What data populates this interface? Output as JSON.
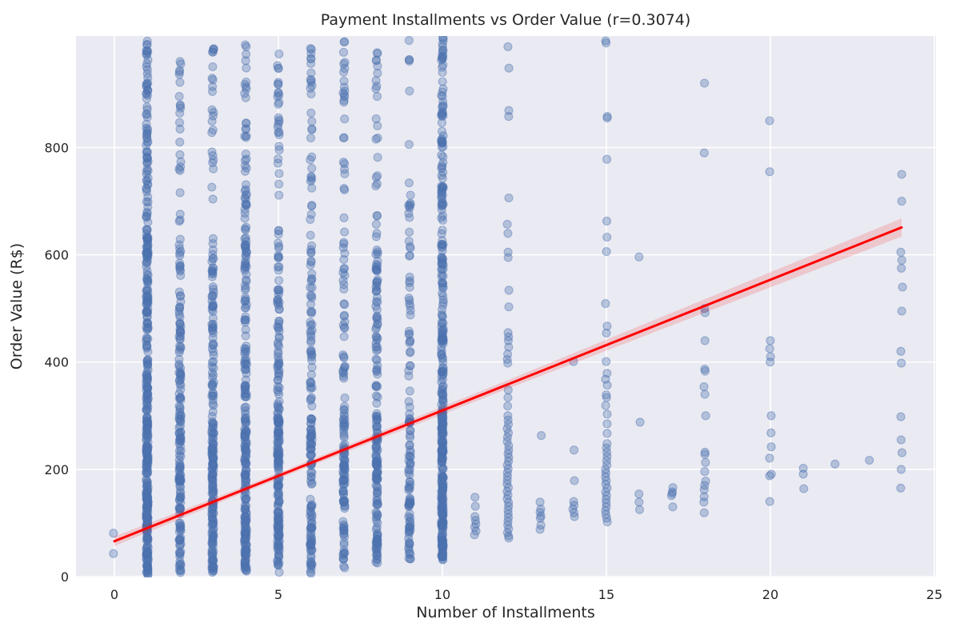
{
  "title": "Payment Installments vs Order Value (r=0.3074)",
  "xlabel": "Number of Installments",
  "ylabel": "Order Value (R$)",
  "panel": {
    "fig_bg": "#ffffff",
    "axes_bg": "#eaeaf2",
    "grid_color": "#ffffff",
    "text_color": "#262626"
  },
  "chart_data": {
    "type": "scatter",
    "title": "Payment Installments vs Order Value (r=0.3074)",
    "xlabel": "Number of Installments",
    "ylabel": "Order Value (R$)",
    "correlation_r": 0.3074,
    "xlim": [
      -1.17,
      25.05
    ],
    "ylim": [
      -1.5,
      1008
    ],
    "x_ticks": [
      0,
      5,
      10,
      15,
      20,
      25
    ],
    "y_ticks": [
      0,
      200,
      400,
      600,
      800
    ],
    "grid": true,
    "legend": false,
    "marker": {
      "color": "#4C72B0",
      "alpha": 0.35,
      "radius": 5,
      "edge_alpha": 0.45
    },
    "regression": {
      "color": "#ff0000",
      "line_width": 3,
      "x": [
        0,
        24
      ],
      "y": [
        66,
        651
      ],
      "ci_color": "#ff0000",
      "ci_alpha": 0.15,
      "ci_halfwidths": [
        [
          0,
          9
        ],
        [
          4.5,
          5
        ],
        [
          12,
          8
        ],
        [
          24,
          17
        ]
      ]
    },
    "dense_columns": [
      {
        "x": 1,
        "count": 420,
        "ymin": 2,
        "ymax": 1005,
        "weights": [
          0.5,
          0.3,
          0.2
        ]
      },
      {
        "x": 2,
        "count": 190,
        "ymin": 4,
        "ymax": 1000,
        "weights": [
          0.55,
          0.3,
          0.15
        ]
      },
      {
        "x": 3,
        "count": 230,
        "ymin": 5,
        "ymax": 1005,
        "weights": [
          0.55,
          0.3,
          0.15
        ]
      },
      {
        "x": 4,
        "count": 260,
        "ymin": 5,
        "ymax": 1005,
        "weights": [
          0.52,
          0.31,
          0.17
        ]
      },
      {
        "x": 5,
        "count": 230,
        "ymin": 4,
        "ymax": 1005,
        "weights": [
          0.55,
          0.3,
          0.15
        ]
      },
      {
        "x": 6,
        "count": 170,
        "ymin": 6,
        "ymax": 1000,
        "weights": [
          0.57,
          0.29,
          0.14
        ]
      },
      {
        "x": 7,
        "count": 150,
        "ymin": 14,
        "ymax": 1000,
        "weights": [
          0.56,
          0.29,
          0.15
        ]
      },
      {
        "x": 8,
        "count": 190,
        "ymin": 20,
        "ymax": 1005,
        "weights": [
          0.54,
          0.3,
          0.16
        ]
      },
      {
        "x": 9,
        "count": 120,
        "ymin": 28,
        "ymax": 1000,
        "weights": [
          0.56,
          0.29,
          0.15
        ]
      },
      {
        "x": 10,
        "count": 380,
        "ymin": 30,
        "ymax": 1005,
        "weights": [
          0.5,
          0.3,
          0.2
        ]
      }
    ],
    "sparse_points": [
      [
        0,
        81
      ],
      [
        0,
        43
      ],
      [
        11,
        148
      ],
      [
        11,
        131
      ],
      [
        11,
        112
      ],
      [
        11,
        105
      ],
      [
        11,
        98
      ],
      [
        11,
        92
      ],
      [
        11,
        85
      ],
      [
        11,
        78
      ],
      [
        12,
        988
      ],
      [
        12,
        948
      ],
      [
        12,
        869
      ],
      [
        12,
        858
      ],
      [
        12,
        706
      ],
      [
        12,
        657
      ],
      [
        12,
        640
      ],
      [
        12,
        605
      ],
      [
        12,
        595
      ],
      [
        12,
        534
      ],
      [
        12,
        503
      ],
      [
        12,
        455
      ],
      [
        12,
        447
      ],
      [
        12,
        440
      ],
      [
        12,
        428
      ],
      [
        12,
        415
      ],
      [
        12,
        405
      ],
      [
        12,
        398
      ],
      [
        12,
        348
      ],
      [
        12,
        334
      ],
      [
        12,
        318
      ],
      [
        12,
        300
      ],
      [
        12,
        292
      ],
      [
        12,
        284
      ],
      [
        12,
        276
      ],
      [
        12,
        268
      ],
      [
        12,
        260
      ],
      [
        12,
        252
      ],
      [
        12,
        244
      ],
      [
        12,
        236
      ],
      [
        12,
        229
      ],
      [
        12,
        222
      ],
      [
        12,
        215
      ],
      [
        12,
        208
      ],
      [
        12,
        201
      ],
      [
        12,
        194
      ],
      [
        12,
        187
      ],
      [
        12,
        180
      ],
      [
        12,
        173
      ],
      [
        12,
        166
      ],
      [
        12,
        159
      ],
      [
        12,
        152
      ],
      [
        12,
        145
      ],
      [
        12,
        138
      ],
      [
        12,
        131
      ],
      [
        12,
        124
      ],
      [
        12,
        117
      ],
      [
        12,
        110
      ],
      [
        12,
        103
      ],
      [
        12,
        96
      ],
      [
        12,
        89
      ],
      [
        12,
        82
      ],
      [
        12,
        76
      ],
      [
        12,
        72
      ],
      [
        13,
        263
      ],
      [
        13,
        139
      ],
      [
        13,
        126
      ],
      [
        13,
        120
      ],
      [
        13,
        113
      ],
      [
        13,
        109
      ],
      [
        13,
        96
      ],
      [
        13,
        88
      ],
      [
        14,
        401
      ],
      [
        14,
        236
      ],
      [
        14,
        179
      ],
      [
        14,
        140
      ],
      [
        14,
        133
      ],
      [
        14,
        126
      ],
      [
        14,
        119
      ],
      [
        14,
        112
      ],
      [
        15,
        999
      ],
      [
        15,
        995
      ],
      [
        15,
        858
      ],
      [
        15,
        855
      ],
      [
        15,
        778
      ],
      [
        15,
        663
      ],
      [
        15,
        633
      ],
      [
        15,
        606
      ],
      [
        15,
        509
      ],
      [
        15,
        467
      ],
      [
        15,
        454
      ],
      [
        15,
        401
      ],
      [
        15,
        379
      ],
      [
        15,
        368
      ],
      [
        15,
        357
      ],
      [
        15,
        339
      ],
      [
        15,
        334
      ],
      [
        15,
        319
      ],
      [
        15,
        303
      ],
      [
        15,
        285
      ],
      [
        15,
        267
      ],
      [
        15,
        248
      ],
      [
        15,
        240
      ],
      [
        15,
        232
      ],
      [
        15,
        224
      ],
      [
        15,
        216
      ],
      [
        15,
        208
      ],
      [
        15,
        200
      ],
      [
        15,
        193
      ],
      [
        15,
        186
      ],
      [
        15,
        179
      ],
      [
        15,
        172
      ],
      [
        15,
        165
      ],
      [
        15,
        158
      ],
      [
        15,
        151
      ],
      [
        15,
        144
      ],
      [
        15,
        137
      ],
      [
        15,
        130
      ],
      [
        15,
        123
      ],
      [
        15,
        116
      ],
      [
        15,
        109
      ],
      [
        15,
        102
      ],
      [
        16,
        596
      ],
      [
        16,
        288
      ],
      [
        16,
        154
      ],
      [
        16,
        139
      ],
      [
        16,
        125
      ],
      [
        17,
        166
      ],
      [
        17,
        158
      ],
      [
        17,
        155
      ],
      [
        17,
        151
      ],
      [
        17,
        130
      ],
      [
        18,
        920
      ],
      [
        18,
        790
      ],
      [
        18,
        500
      ],
      [
        18,
        492
      ],
      [
        18,
        440
      ],
      [
        18,
        387
      ],
      [
        18,
        383
      ],
      [
        18,
        354
      ],
      [
        18,
        340
      ],
      [
        18,
        300
      ],
      [
        18,
        232
      ],
      [
        18,
        228
      ],
      [
        18,
        213
      ],
      [
        18,
        196
      ],
      [
        18,
        178
      ],
      [
        18,
        170
      ],
      [
        18,
        162
      ],
      [
        18,
        149
      ],
      [
        18,
        139
      ],
      [
        18,
        119
      ],
      [
        20,
        850
      ],
      [
        20,
        755
      ],
      [
        20,
        440
      ],
      [
        20,
        425
      ],
      [
        20,
        410
      ],
      [
        20,
        400
      ],
      [
        20,
        300
      ],
      [
        20,
        268
      ],
      [
        20,
        242
      ],
      [
        20,
        221
      ],
      [
        20,
        191
      ],
      [
        20,
        188
      ],
      [
        20,
        140
      ],
      [
        21,
        202
      ],
      [
        21,
        191
      ],
      [
        21,
        164
      ],
      [
        22,
        210
      ],
      [
        23,
        217
      ],
      [
        24,
        750
      ],
      [
        24,
        700
      ],
      [
        24,
        605
      ],
      [
        24,
        590
      ],
      [
        24,
        575
      ],
      [
        24,
        540
      ],
      [
        24,
        495
      ],
      [
        24,
        420
      ],
      [
        24,
        398
      ],
      [
        24,
        298
      ],
      [
        24,
        255
      ],
      [
        24,
        231
      ],
      [
        24,
        200
      ],
      [
        24,
        165
      ]
    ]
  }
}
